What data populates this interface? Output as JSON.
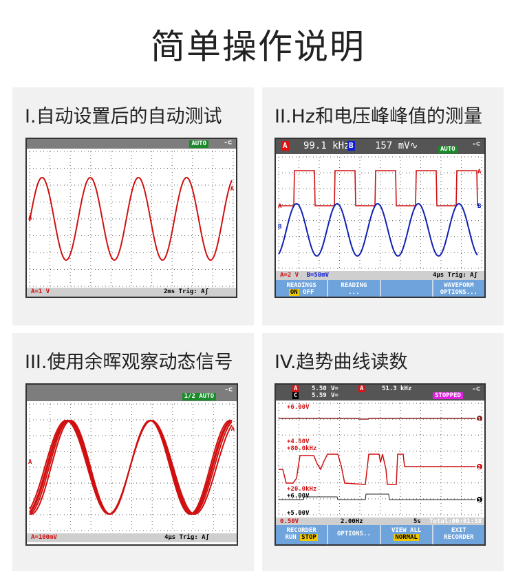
{
  "page_title": "简单操作说明",
  "colors": {
    "trace_red": "#d01010",
    "trace_blue": "#1020b0",
    "softkey_blue": "#6fa3dc",
    "badge_green": "#1a8a2a",
    "stopped_magenta": "#e020e0",
    "highlight_yellow": "#f0c800"
  },
  "panels": [
    {
      "title": "I.自动设置后的自动测试",
      "badge": "AUTO",
      "trace_label": "A",
      "status_left": "A=1 V",
      "status_right": "2ms Trig: Aʃ"
    },
    {
      "title": "II.Hz和电压峰峰值的测量",
      "chA": "A",
      "reading1": "99.1 kHz",
      "chB": "B",
      "reading2": "157 mV∿",
      "badge": "AUTO",
      "status_a": "A=2 V",
      "status_b": "B=50mV",
      "status_right": "4µs Trig: Aʃ",
      "softkeys": [
        {
          "l1": "READINGS",
          "on": "ON",
          "off": "OFF"
        },
        {
          "l1": "READING",
          "l2": "..."
        },
        {
          "l1": ""
        },
        {
          "l1": "WAVEFORM",
          "l2": "OPTIONS..."
        }
      ]
    },
    {
      "title": "III.使用余晖观察动态信号",
      "badge": "1/2 AUTO",
      "trace_label": "A",
      "status_left": "A=100mV",
      "status_right": "4µs Trig: Aʃ"
    },
    {
      "title": "IV.趋势曲线读数",
      "row1": {
        "ch": "A",
        "val": "5.50",
        "unit": "V=",
        "ch2": "A",
        "val2": "51.3",
        "unit2": "kHz"
      },
      "row2": {
        "ch": "C",
        "val": "5.59",
        "unit": "V="
      },
      "stopped": "STOPPED",
      "labels": [
        "+6.00V",
        "+4.50V",
        "+80.0kHz",
        "+20.0kHz",
        "+6.00V",
        "+5.00V"
      ],
      "markers": [
        "1",
        "2",
        "3"
      ],
      "status": [
        "0.50V",
        "2.00Hz",
        "5s",
        "Total:00:01:38"
      ],
      "softkeys": [
        {
          "l1": "RECORDER",
          "l2a": "RUN",
          "l2b": "STOP"
        },
        {
          "l1": "OPTIONS.."
        },
        {
          "l1": "VIEW ALL",
          "l2b": "NORMAL"
        },
        {
          "l1": "EXIT",
          "l2": "RECORDER"
        }
      ]
    }
  ]
}
